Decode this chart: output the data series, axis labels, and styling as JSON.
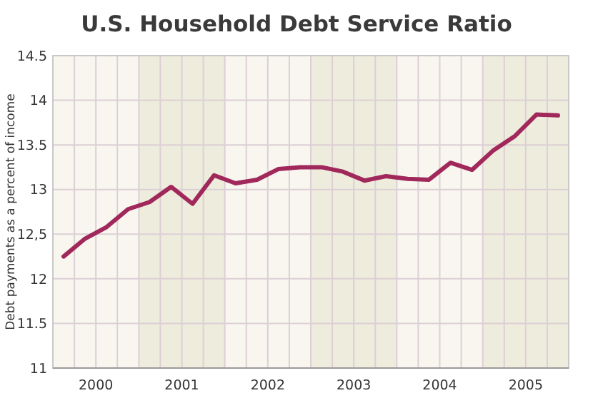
{
  "chart_data": {
    "type": "line",
    "title": "U.S. Household Debt Service Ratio",
    "ylabel": "Debt payments as a percent of income",
    "x": [
      2000.125,
      2000.375,
      2000.625,
      2000.875,
      2001.125,
      2001.375,
      2001.625,
      2001.875,
      2002.125,
      2002.375,
      2002.625,
      2002.875,
      2003.125,
      2003.375,
      2003.625,
      2003.875,
      2004.125,
      2004.375,
      2004.625,
      2004.875,
      2005.125,
      2005.375,
      2005.625,
      2005.875
    ],
    "series": [
      {
        "color": "#a0285a",
        "values": [
          12.25,
          12.45,
          12.58,
          12.78,
          12.86,
          13.03,
          12.84,
          13.16,
          13.07,
          13.11,
          13.23,
          13.25,
          13.25,
          13.2,
          13.1,
          13.15,
          13.12,
          13.11,
          13.3,
          13.22,
          13.44,
          13.6,
          13.84,
          13.83
        ]
      }
    ],
    "xlim": [
      2000,
      2006
    ],
    "xticks": [
      {
        "value": 2000,
        "label": null
      },
      {
        "value": 2000.25,
        "label": null
      },
      {
        "value": 2000.5,
        "label": "2000"
      },
      {
        "value": 2000.75,
        "label": null
      },
      {
        "value": 2001,
        "label": null
      },
      {
        "value": 2001.25,
        "label": null
      },
      {
        "value": 2001.5,
        "label": "2001"
      },
      {
        "value": 2001.75,
        "label": null
      },
      {
        "value": 2002,
        "label": null
      },
      {
        "value": 2002.25,
        "label": null
      },
      {
        "value": 2002.5,
        "label": "2002"
      },
      {
        "value": 2002.75,
        "label": null
      },
      {
        "value": 2003,
        "label": null
      },
      {
        "value": 2003.25,
        "label": null
      },
      {
        "value": 2003.5,
        "label": "2003"
      },
      {
        "value": 2003.75,
        "label": null
      },
      {
        "value": 2004,
        "label": null
      },
      {
        "value": 2004.25,
        "label": null
      },
      {
        "value": 2004.5,
        "label": "2004"
      },
      {
        "value": 2004.75,
        "label": null
      },
      {
        "value": 2005,
        "label": null
      },
      {
        "value": 2005.25,
        "label": null
      },
      {
        "value": 2005.5,
        "label": "2005"
      },
      {
        "value": 2005.75,
        "label": null
      },
      {
        "value": 2006,
        "label": null
      }
    ],
    "ylim": [
      11,
      14.5
    ],
    "yticks": [
      11,
      11.5,
      12,
      {
        "value": 12.5,
        "label": "12,5"
      },
      13,
      13.5,
      14,
      14.5
    ],
    "grid": true,
    "marker": "none",
    "line_style": "solid"
  }
}
